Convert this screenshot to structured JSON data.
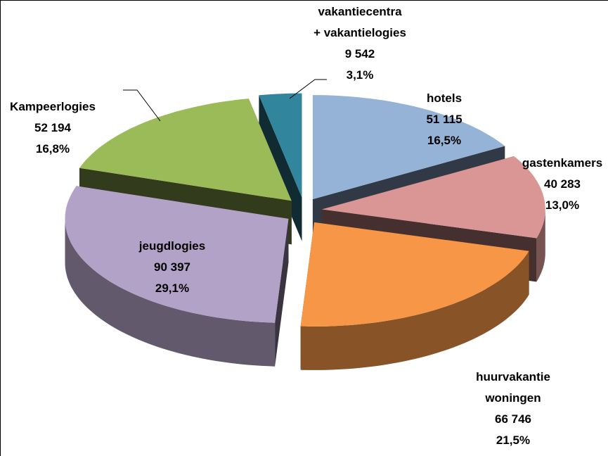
{
  "chart_data": {
    "type": "pie3d",
    "categories": [
      [
        "hotels"
      ],
      [
        "gastenkamers"
      ],
      [
        "huurvakantie",
        "woningen"
      ],
      [
        "jeugdlogies"
      ],
      [
        "Kampeerlogies"
      ],
      [
        "vakantiecentra",
        "+ vakantielogies"
      ]
    ],
    "values": [
      51115,
      40283,
      66746,
      90397,
      52194,
      9542
    ],
    "value_labels": [
      "51 115",
      "40 283",
      "66 746",
      "90 397",
      "52 194",
      "9 542"
    ],
    "percents": [
      16.5,
      13.0,
      21.5,
      29.1,
      16.8,
      3.1
    ],
    "percent_labels": [
      "16,5%",
      "13,0%",
      "21,5%",
      "29,1%",
      "16,8%",
      "3,1%"
    ],
    "colors": [
      "#95b3d7",
      "#d99694",
      "#f79646",
      "#b3a2c7",
      "#9bbb59",
      "#31859c"
    ]
  }
}
